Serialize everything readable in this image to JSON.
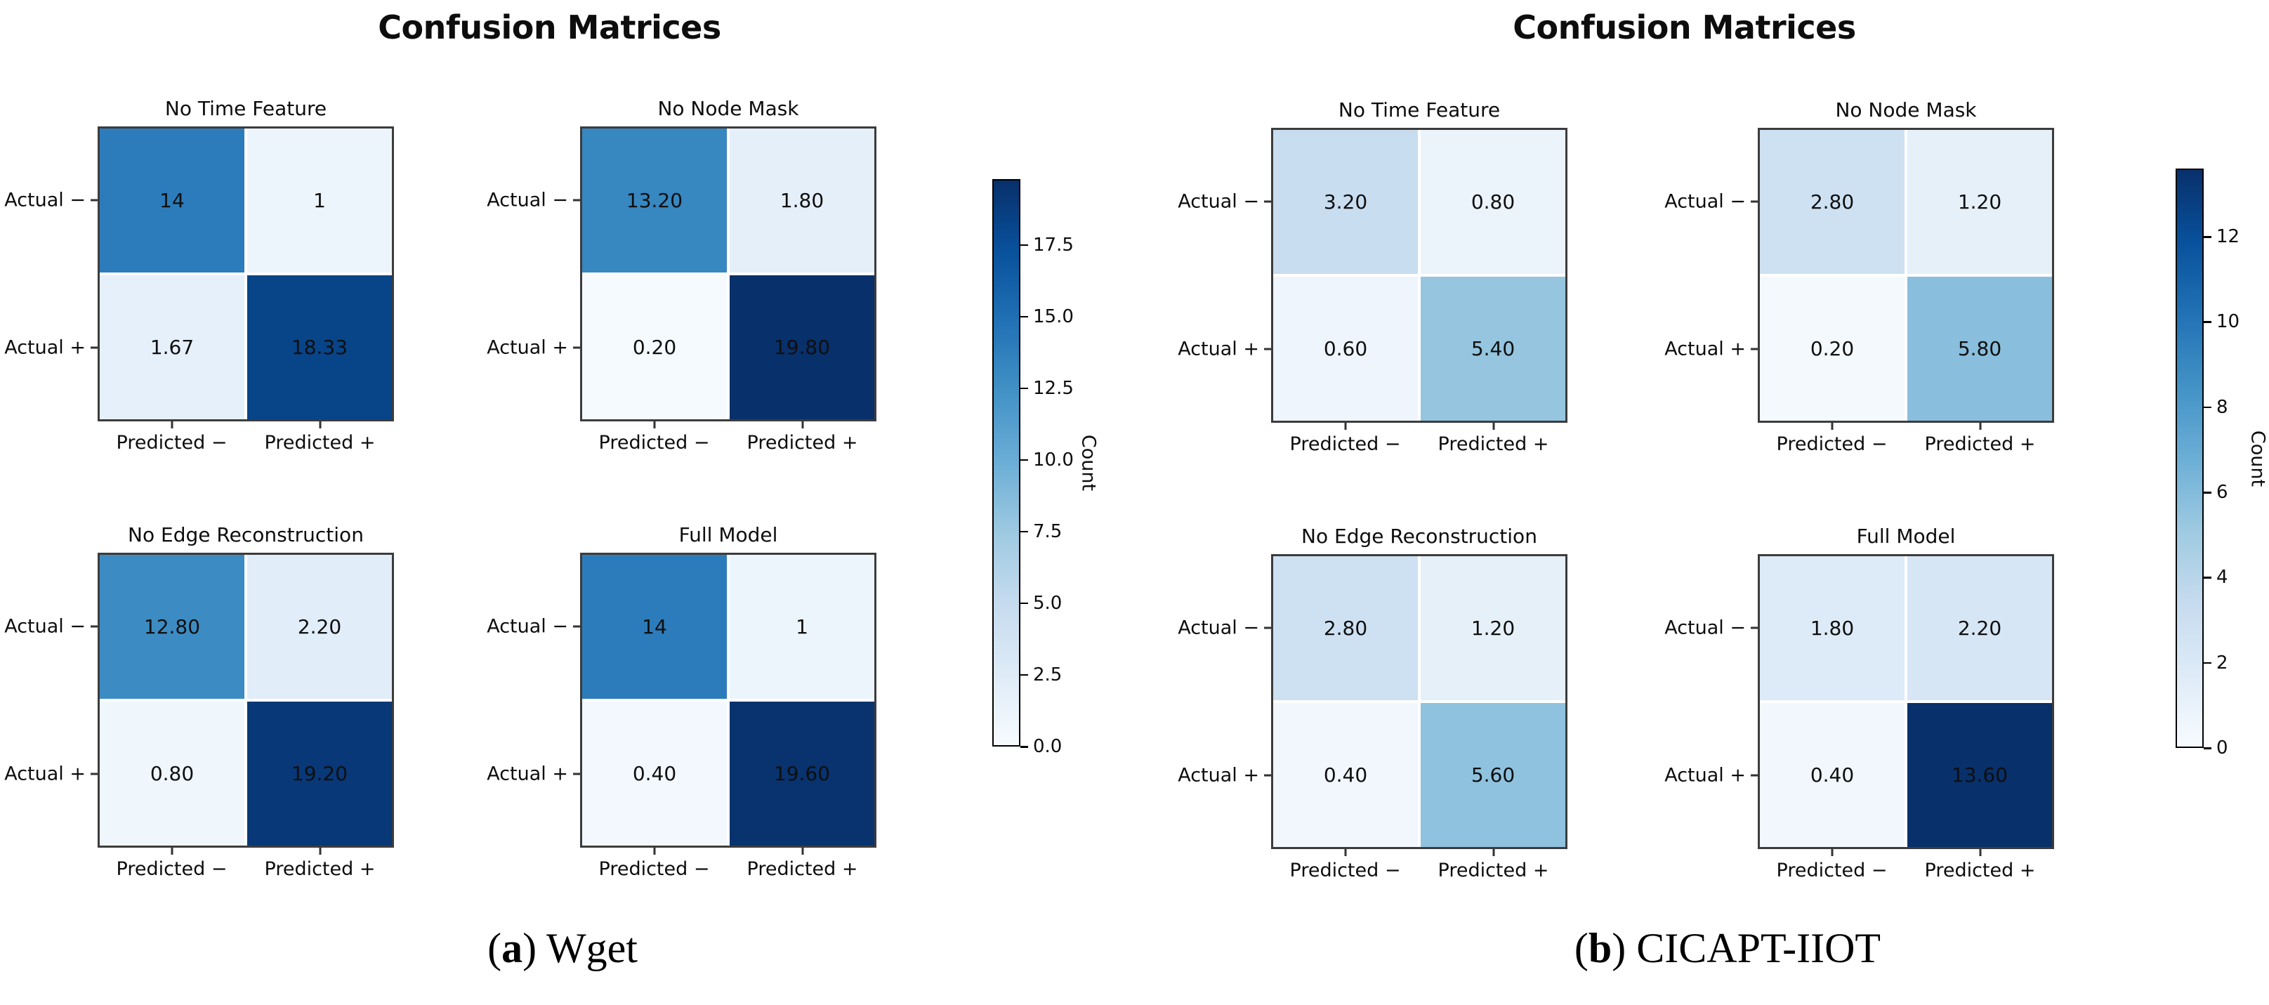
{
  "chart_data": [
    {
      "type": "heatmap",
      "panel": "a",
      "suptitle": "Confusion Matrices",
      "caption": {
        "prefix": "(",
        "label": "a",
        "suffix": ") ",
        "text": "Wget"
      },
      "colormap": "Blues",
      "vmin": 0,
      "vmax": 19.8,
      "grid": false,
      "legend_position": "right-colorbar",
      "colorbar_label": "Count",
      "colorbar_tick_values": [
        0,
        2.5,
        5,
        7.5,
        10,
        12.5,
        15,
        17.5
      ],
      "colorbar_tick_labels": [
        "0.0",
        "2.5",
        "5.0",
        "7.5",
        "10.0",
        "12.5",
        "15.0",
        "17.5"
      ],
      "x_tick_labels": [
        "Predicted −",
        "Predicted +"
      ],
      "y_tick_labels": [
        "Actual −",
        "Actual +"
      ],
      "subplots": [
        {
          "title": "No Time Feature",
          "values": [
            [
              14,
              1
            ],
            [
              1.67,
              18.33
            ]
          ],
          "labels": [
            [
              "14",
              "1"
            ],
            [
              "1.67",
              "18.33"
            ]
          ]
        },
        {
          "title": "No Node Mask",
          "values": [
            [
              13.2,
              1.8
            ],
            [
              0.2,
              19.8
            ]
          ],
          "labels": [
            [
              "13.20",
              "1.80"
            ],
            [
              "0.20",
              "19.80"
            ]
          ]
        },
        {
          "title": "No Edge Reconstruction",
          "values": [
            [
              12.8,
              2.2
            ],
            [
              0.8,
              19.2
            ]
          ],
          "labels": [
            [
              "12.80",
              "2.20"
            ],
            [
              "0.80",
              "19.20"
            ]
          ]
        },
        {
          "title": "Full Model",
          "values": [
            [
              14,
              1
            ],
            [
              0.4,
              19.6
            ]
          ],
          "labels": [
            [
              "14",
              "1"
            ],
            [
              "0.40",
              "19.60"
            ]
          ]
        }
      ]
    },
    {
      "type": "heatmap",
      "panel": "b",
      "suptitle": "Confusion Matrices",
      "caption": {
        "prefix": "(",
        "label": "b",
        "suffix": ") ",
        "text": "CICAPT-IIOT"
      },
      "colormap": "Blues",
      "vmin": 0,
      "vmax": 13.6,
      "grid": false,
      "legend_position": "right-colorbar",
      "colorbar_label": "Count",
      "colorbar_tick_values": [
        0,
        2,
        4,
        6,
        8,
        10,
        12
      ],
      "colorbar_tick_labels": [
        "0",
        "2",
        "4",
        "6",
        "8",
        "10",
        "12"
      ],
      "x_tick_labels": [
        "Predicted −",
        "Predicted +"
      ],
      "y_tick_labels": [
        "Actual −",
        "Actual +"
      ],
      "subplots": [
        {
          "title": "No Time Feature",
          "values": [
            [
              3.2,
              0.8
            ],
            [
              0.6,
              5.4
            ]
          ],
          "labels": [
            [
              "3.20",
              "0.80"
            ],
            [
              "0.60",
              "5.40"
            ]
          ]
        },
        {
          "title": "No Node Mask",
          "values": [
            [
              2.8,
              1.2
            ],
            [
              0.2,
              5.8
            ]
          ],
          "labels": [
            [
              "2.80",
              "1.20"
            ],
            [
              "0.20",
              "5.80"
            ]
          ]
        },
        {
          "title": "No Edge Reconstruction",
          "values": [
            [
              2.8,
              1.2
            ],
            [
              0.4,
              5.6
            ]
          ],
          "labels": [
            [
              "2.80",
              "1.20"
            ],
            [
              "0.40",
              "5.60"
            ]
          ]
        },
        {
          "title": "Full Model",
          "values": [
            [
              1.8,
              2.2
            ],
            [
              0.4,
              13.6
            ]
          ],
          "labels": [
            [
              "1.80",
              "2.20"
            ],
            [
              "0.40",
              "13.60"
            ]
          ]
        }
      ]
    }
  ]
}
